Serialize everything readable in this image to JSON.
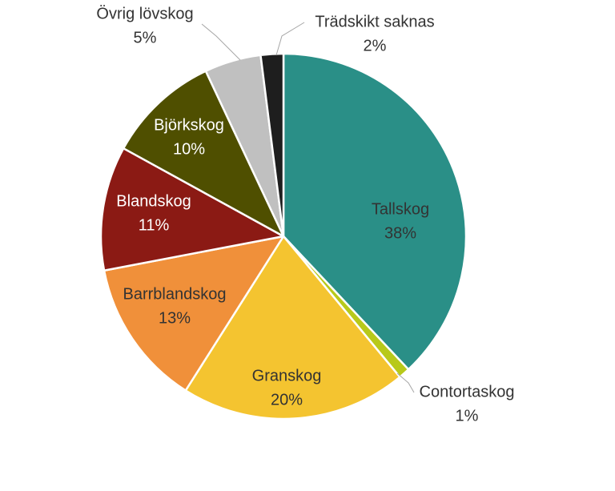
{
  "chart_data": {
    "type": "pie",
    "categories": [
      "Tallskog",
      "Contortaskog",
      "Granskog",
      "Barrblandskog",
      "Blandskog",
      "Björkskog",
      "Övrig lövskog",
      "Trädskikt saknas"
    ],
    "values": [
      38,
      1,
      20,
      13,
      11,
      10,
      5,
      2
    ],
    "value_labels": [
      "38%",
      "1%",
      "20%",
      "13%",
      "11%",
      "10%",
      "5%",
      "2%"
    ],
    "colors": [
      "#2a8f87",
      "#b8c91a",
      "#f4c430",
      "#f0903a",
      "#8b1a14",
      "#4f4f00",
      "#c0c0c0",
      "#1e1e1e"
    ],
    "label_colors": [
      "#333333",
      "#333333",
      "#333333",
      "#333333",
      "#ffffff",
      "#ffffff",
      "#333333",
      "#333333"
    ],
    "start_angle_deg": 0,
    "direction": "clockwise"
  }
}
